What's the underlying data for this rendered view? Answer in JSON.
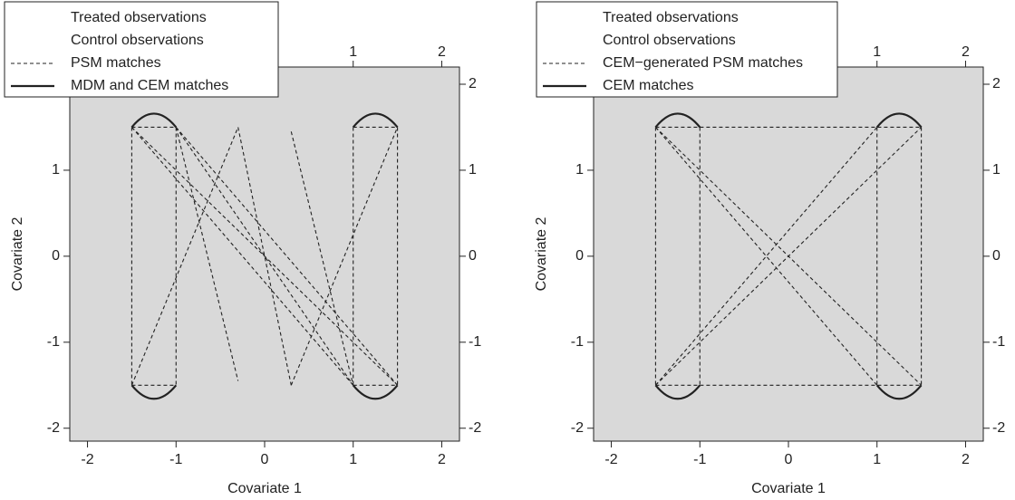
{
  "chart_data": [
    {
      "type": "matches",
      "xlabel": "Covariate 1",
      "ylabel": "Covariate 2",
      "xlim": [
        -2.2,
        2.2
      ],
      "ylim": [
        -2.15,
        2.2
      ],
      "xticks": [
        -2,
        -1,
        0,
        1,
        2
      ],
      "yticks": [
        -2,
        -1,
        0,
        1,
        2
      ],
      "x2ticks": [
        1,
        2
      ],
      "y2ticks": [
        -2,
        -1,
        0,
        1,
        2
      ],
      "series": [
        {
          "name": "Treated observations",
          "style": "none"
        },
        {
          "name": "Control observations",
          "style": "none"
        },
        {
          "name": "PSM matches",
          "style": "dashed",
          "segments": [
            [
              -1.5,
              1.5,
              -1,
              1.5
            ],
            [
              -1.5,
              -1.5,
              -1,
              -1.5
            ],
            [
              1,
              1.5,
              1.5,
              1.5
            ],
            [
              1,
              -1.5,
              1.5,
              -1.5
            ],
            [
              -1.5,
              1.5,
              -1.5,
              -1.5
            ],
            [
              -1,
              1.5,
              -1,
              -1.5
            ],
            [
              1,
              1.5,
              1,
              -1.5
            ],
            [
              1.5,
              1.5,
              1.5,
              -1.5
            ],
            [
              -1.5,
              1.5,
              1,
              -1.5
            ],
            [
              -1,
              1.5,
              1.5,
              -1.5
            ],
            [
              -1,
              1.5,
              1,
              -1.5
            ],
            [
              -1,
              1.5,
              -0.3,
              -1.45
            ],
            [
              -1.5,
              -1.5,
              -0.3,
              1.5
            ],
            [
              -0.3,
              1.5,
              0.3,
              -1.5
            ],
            [
              0.3,
              1.45,
              1,
              -1.5
            ],
            [
              0.3,
              -1.5,
              1.5,
              1.5
            ],
            [
              -1.5,
              1.5,
              1.5,
              -1.5
            ]
          ]
        },
        {
          "name": "MDM and CEM matches",
          "style": "solid",
          "segments": [
            [
              -1.5,
              1.5,
              -1,
              1.5
            ],
            [
              1,
              1.5,
              1.5,
              1.5
            ],
            [
              -1.5,
              -1.5,
              -1,
              -1.5
            ],
            [
              1,
              -1.5,
              1.5,
              -1.5
            ]
          ]
        }
      ]
    },
    {
      "type": "matches",
      "xlabel": "Covariate 1",
      "ylabel": "Covariate 2",
      "xlim": [
        -2.2,
        2.2
      ],
      "ylim": [
        -2.15,
        2.2
      ],
      "xticks": [
        -2,
        -1,
        0,
        1,
        2
      ],
      "yticks": [
        -2,
        -1,
        0,
        1,
        2
      ],
      "x2ticks": [
        1,
        2
      ],
      "y2ticks": [
        -2,
        -1,
        0,
        1,
        2
      ],
      "series": [
        {
          "name": "Treated observations",
          "style": "none"
        },
        {
          "name": "Control observations",
          "style": "none"
        },
        {
          "name": "CEM−generated PSM matches",
          "style": "dashed",
          "segments": [
            [
              -1.5,
              1.5,
              1.5,
              1.5
            ],
            [
              -1.5,
              -1.5,
              1.5,
              -1.5
            ],
            [
              -1.5,
              1.5,
              -1.5,
              -1.5
            ],
            [
              -1,
              1.5,
              -1,
              -1.5
            ],
            [
              1,
              1.5,
              1,
              -1.5
            ],
            [
              1.5,
              1.5,
              1.5,
              -1.5
            ],
            [
              -1.5,
              1.5,
              1.5,
              -1.5
            ],
            [
              -1.5,
              -1.5,
              1.5,
              1.5
            ],
            [
              -1.5,
              1.5,
              1,
              -1.5
            ],
            [
              -1.5,
              -1.5,
              1,
              1.5
            ]
          ]
        },
        {
          "name": "CEM matches",
          "style": "solid",
          "segments": [
            [
              -1.5,
              1.5,
              -1,
              1.5
            ],
            [
              1,
              1.5,
              1.5,
              1.5
            ],
            [
              -1.5,
              -1.5,
              -1,
              -1.5
            ],
            [
              1,
              -1.5,
              1.5,
              -1.5
            ]
          ]
        }
      ]
    }
  ]
}
